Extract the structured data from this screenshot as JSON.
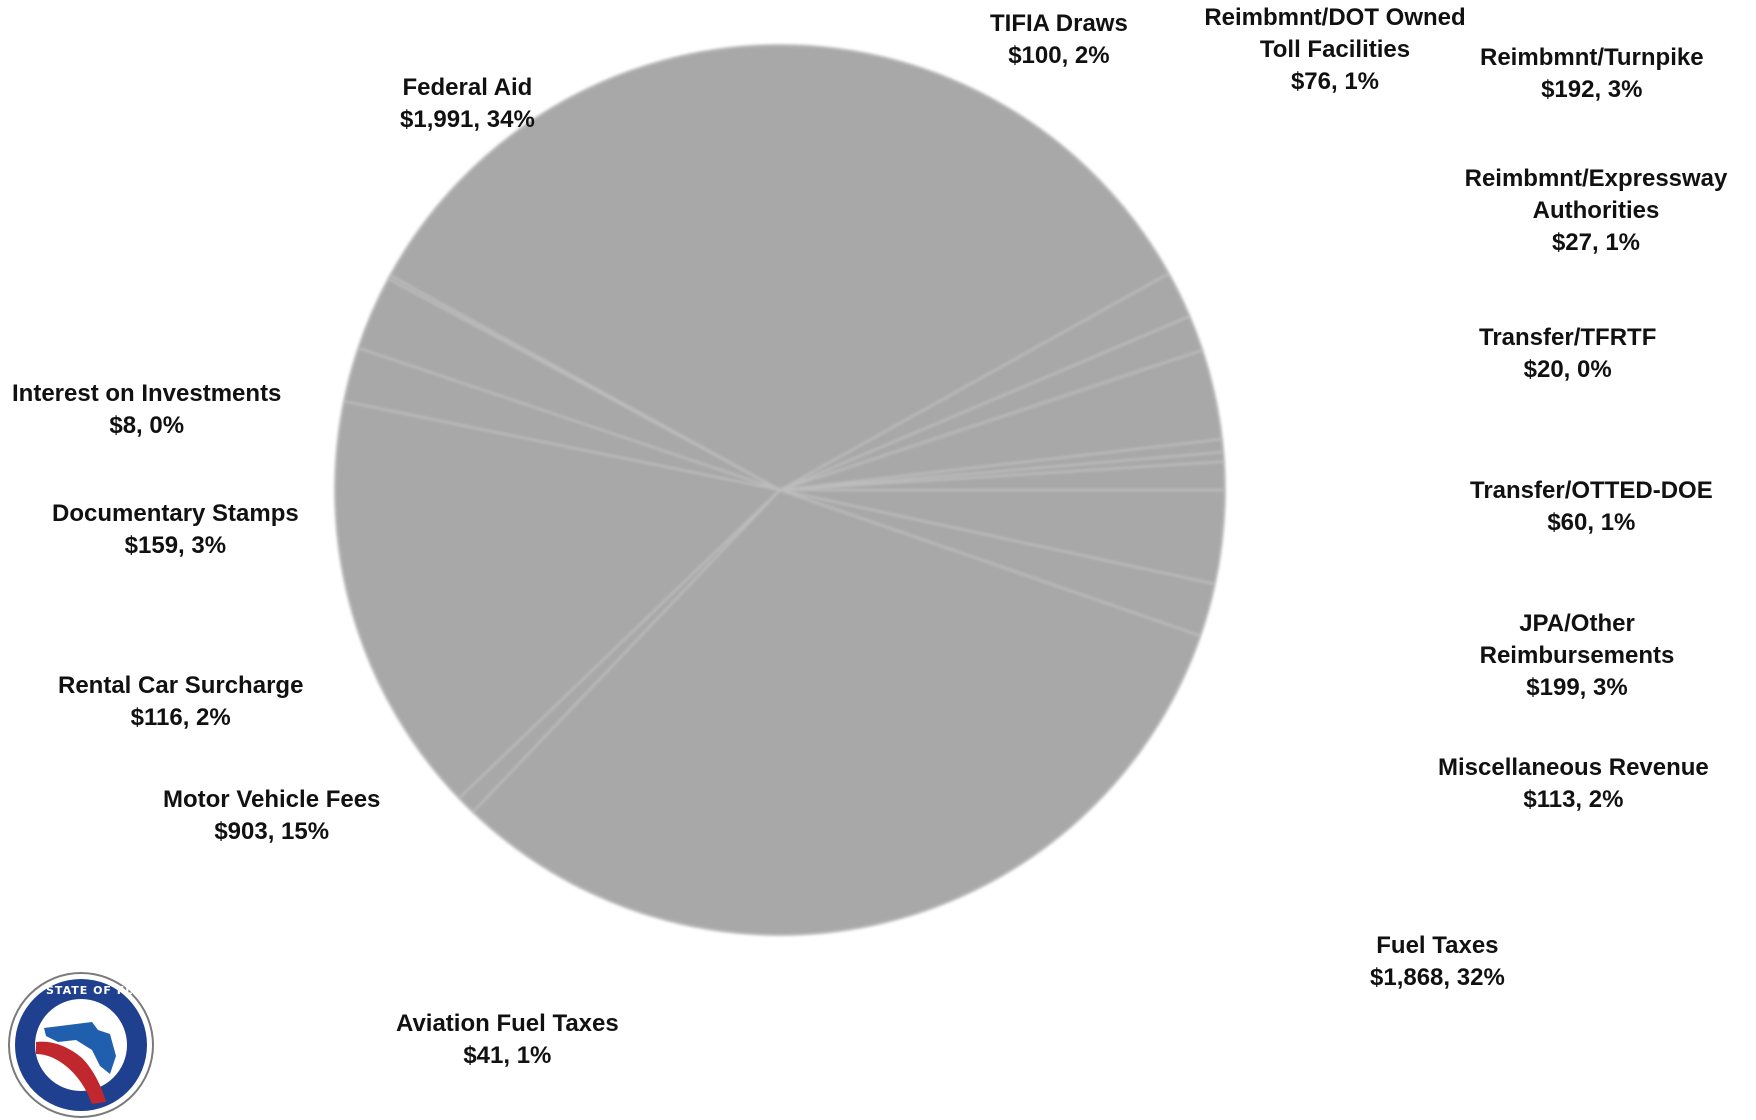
{
  "chart_data": {
    "type": "pie",
    "title": "",
    "colors": {
      "slice": "#a8a8a8",
      "separator": "#bdbdbd",
      "label": "#111111"
    },
    "slices": [
      {
        "name": "Transfer/OTTED-DOE",
        "value_label": "$60, 1%",
        "value": 60
      },
      {
        "name": "Transfer/TFRTF",
        "value_label": "$20, 0%",
        "value": 20
      },
      {
        "name": "Reimbmnt/Expressway Authorities",
        "value_label": "$27, 1%",
        "value": 27
      },
      {
        "name": "Reimbmnt/Turnpike",
        "value_label": "$192, 3%",
        "value": 192
      },
      {
        "name": "Reimbmnt/DOT Owned Toll Facilities",
        "value_label": "$76, 1%",
        "value": 76
      },
      {
        "name": "TIFIA Draws",
        "value_label": "$100, 2%",
        "value": 100
      },
      {
        "name": "Federal Aid",
        "value_label": "$1,991, 34%",
        "value": 1991
      },
      {
        "name": "Interest on Investments",
        "value_label": "$8, 0%",
        "value": 8
      },
      {
        "name": "Documentary Stamps",
        "value_label": "$159, 3%",
        "value": 159
      },
      {
        "name": "Rental Car Surcharge",
        "value_label": "$116, 2%",
        "value": 116
      },
      {
        "name": "Motor Vehicle Fees",
        "value_label": "$903, 15%",
        "value": 903
      },
      {
        "name": "Aviation Fuel Taxes",
        "value_label": "$41, 1%",
        "value": 41
      },
      {
        "name": "Fuel Taxes",
        "value_label": "$1,868, 32%",
        "value": 1868
      },
      {
        "name": "Miscellaneous Revenue",
        "value_label": "$113, 2%",
        "value": 113
      },
      {
        "name": "JPA/Other Reimbursements",
        "value_label": "$199, 3%",
        "value": 199
      }
    ],
    "legend": "none"
  },
  "logo": {
    "text": "STATE OF FLORIDA DEPARTMENT OF TRANSPORTATION",
    "icon": "florida-dot-seal-icon"
  }
}
